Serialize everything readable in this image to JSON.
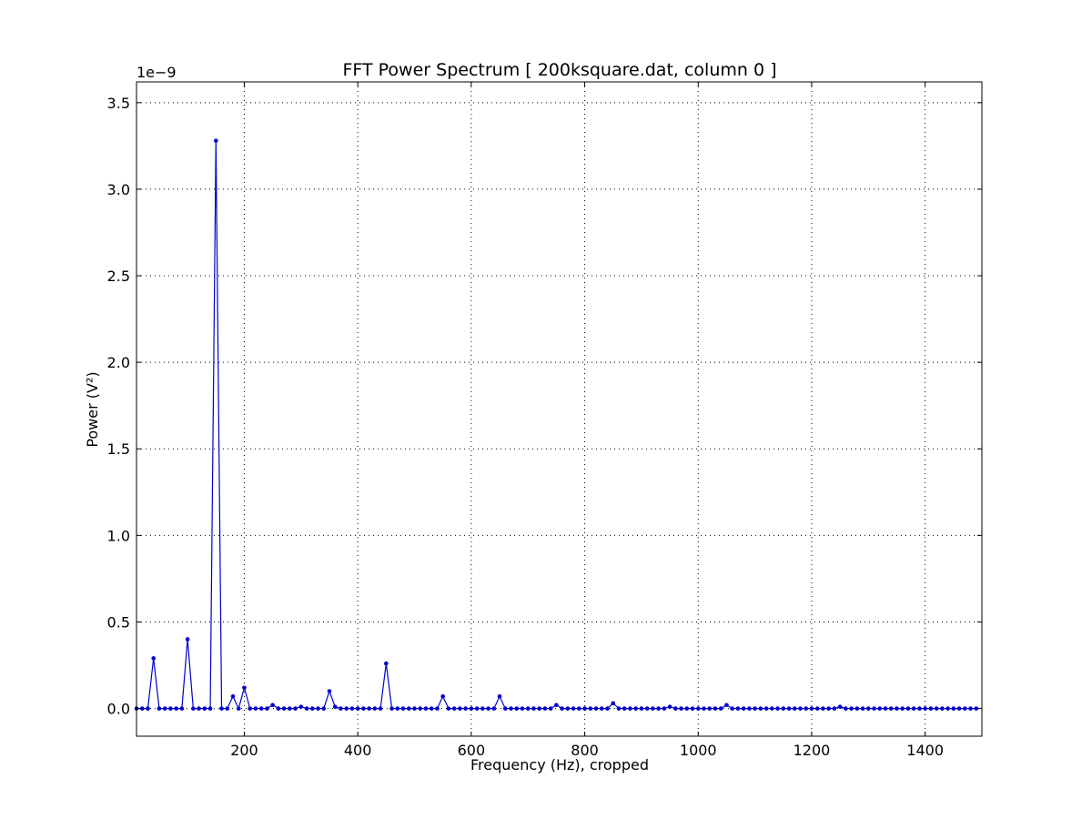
{
  "chart_data": {
    "type": "line",
    "title": "FFT Power Spectrum  [ 200ksquare.dat, column 0 ]",
    "xlabel": "Frequency (Hz),  cropped",
    "ylabel": "Power (V²)",
    "y_offset_label": "1e−9",
    "xlim": [
      10,
      1500
    ],
    "ylim": [
      -0.16,
      3.62
    ],
    "x_ticks": [
      200,
      400,
      600,
      800,
      1000,
      1200,
      1400
    ],
    "x_tick_labels": [
      "200",
      "400",
      "600",
      "800",
      "1000",
      "1200",
      "1400"
    ],
    "y_ticks": [
      0.0,
      0.5,
      1.0,
      1.5,
      2.0,
      2.5,
      3.0,
      3.5
    ],
    "y_tick_labels": [
      "0.0",
      "0.5",
      "1.0",
      "1.5",
      "2.0",
      "2.5",
      "3.0",
      "3.5"
    ],
    "grid": true,
    "color": "#0000cc",
    "x_start": 10,
    "x_step": 10,
    "series": [
      {
        "values": [
          0.0,
          0.0,
          0.0,
          0.29,
          0.0,
          0.0,
          0.0,
          0.0,
          0.0,
          0.4,
          0.0,
          0.0,
          0.0,
          0.0,
          3.28,
          0.0,
          0.0,
          0.07,
          0.0,
          0.12,
          0.0,
          0.0,
          0.0,
          0.0,
          0.02,
          0.0,
          0.0,
          0.0,
          0.0,
          0.01,
          0.0,
          0.0,
          0.0,
          0.0,
          0.1,
          0.01,
          0.0,
          0.0,
          0.0,
          0.0,
          0.0,
          0.0,
          0.0,
          0.0,
          0.26,
          0.0,
          0.0,
          0.0,
          0.0,
          0.0,
          0.0,
          0.0,
          0.0,
          0.0,
          0.07,
          0.0,
          0.0,
          0.0,
          0.0,
          0.0,
          0.0,
          0.0,
          0.0,
          0.0,
          0.07,
          0.0,
          0.0,
          0.0,
          0.0,
          0.0,
          0.0,
          0.0,
          0.0,
          0.0,
          0.02,
          0.0,
          0.0,
          0.0,
          0.0,
          0.0,
          0.0,
          0.0,
          0.0,
          0.0,
          0.03,
          0.0,
          0.0,
          0.0,
          0.0,
          0.0,
          0.0,
          0.0,
          0.0,
          0.0,
          0.01,
          0.0,
          0.0,
          0.0,
          0.0,
          0.0,
          0.0,
          0.0,
          0.0,
          0.0,
          0.02,
          0.0,
          0.0,
          0.0,
          0.0,
          0.0,
          0.0,
          0.0,
          0.0,
          0.0,
          0.0,
          0.0,
          0.0,
          0.0,
          0.0,
          0.0,
          0.0,
          0.0,
          0.0,
          0.0,
          0.01,
          0.0,
          0.0,
          0.0,
          0.0,
          0.0,
          0.0,
          0.0,
          0.0,
          0.0,
          0.0,
          0.0,
          0.0,
          0.0,
          0.0,
          0.0,
          0.0,
          0.0,
          0.0,
          0.0,
          0.0,
          0.0,
          0.0,
          0.0,
          0.0
        ]
      }
    ]
  }
}
